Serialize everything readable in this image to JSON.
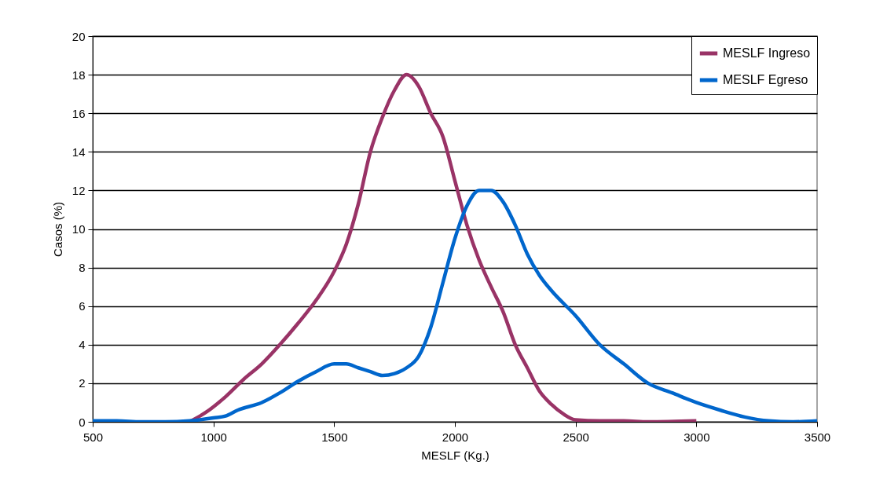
{
  "chart_data": {
    "type": "line",
    "xlabel": "MESLF (Kg.)",
    "ylabel": "Casos (%)",
    "xlim": [
      500,
      3500
    ],
    "xticks": [
      500,
      1000,
      1500,
      2000,
      2500,
      3000,
      3500
    ],
    "ylim": [
      0,
      20
    ],
    "yticks": [
      0,
      2,
      4,
      6,
      8,
      10,
      12,
      14,
      16,
      18,
      20
    ],
    "grid": "y",
    "legend": "top right",
    "line_style": "solid",
    "marker": "none",
    "series": [
      {
        "name": "MESLF Ingreso",
        "color": "#993366",
        "x": [
          900,
          970,
          1050,
          1125,
          1200,
          1275,
          1350,
          1425,
          1500,
          1550,
          1600,
          1650,
          1700,
          1750,
          1800,
          1850,
          1900,
          1950,
          2000,
          2050,
          2100,
          2150,
          2200,
          2250,
          2300,
          2350,
          2400,
          2450,
          2500,
          2600,
          2700,
          2800,
          3000
        ],
        "values": [
          0,
          0.5,
          1.3,
          2.2,
          3,
          4,
          5.1,
          6.3,
          7.8,
          9.2,
          11.3,
          14,
          15.8,
          17.2,
          18,
          17.4,
          16,
          14.8,
          12.5,
          10.2,
          8.4,
          7,
          5.7,
          4,
          2.8,
          1.6,
          0.9,
          0.4,
          0.1,
          0.05,
          0.05,
          0,
          0.05
        ]
      },
      {
        "name": "MESLF Egreso",
        "color": "#0066cc",
        "x": [
          500,
          600,
          700,
          800,
          900,
          1000,
          1050,
          1100,
          1200,
          1275,
          1350,
          1425,
          1500,
          1550,
          1600,
          1650,
          1700,
          1750,
          1800,
          1850,
          1900,
          1950,
          2000,
          2050,
          2100,
          2150,
          2200,
          2250,
          2300,
          2350,
          2400,
          2500,
          2600,
          2700,
          2800,
          2900,
          3000,
          3100,
          3200,
          3300,
          3400,
          3500
        ],
        "values": [
          0.05,
          0.05,
          0,
          0,
          0.05,
          0.2,
          0.3,
          0.6,
          1,
          1.5,
          2.1,
          2.6,
          3,
          3,
          2.8,
          2.6,
          2.4,
          2.5,
          2.8,
          3.4,
          4.9,
          7.2,
          9.5,
          11.2,
          12,
          12,
          11.4,
          10.2,
          8.7,
          7.6,
          6.8,
          5.5,
          4,
          3,
          2,
          1.5,
          1,
          0.6,
          0.25,
          0.05,
          0,
          0.05
        ]
      }
    ]
  }
}
